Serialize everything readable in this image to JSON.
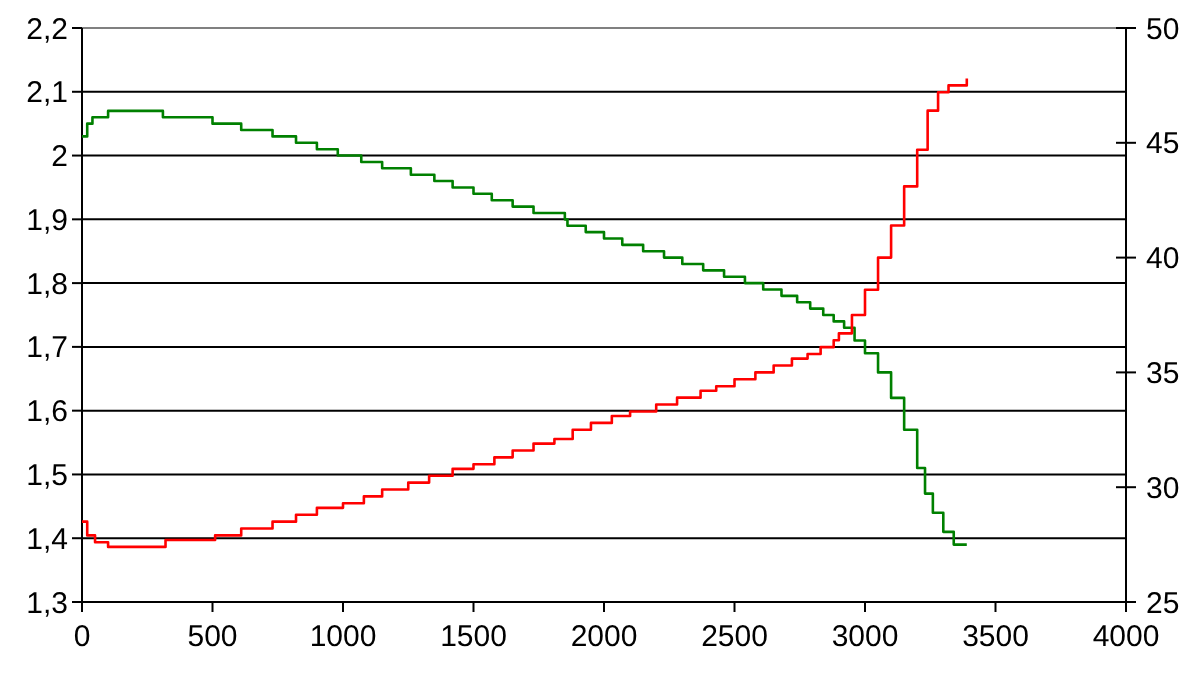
{
  "chart_data": {
    "type": "step",
    "xlim": [
      0,
      4000
    ],
    "xticks": [
      0,
      500,
      1000,
      1500,
      2000,
      2500,
      3000,
      3500,
      4000
    ],
    "ylim": [
      1.3,
      2.2
    ],
    "yticks": [
      {
        "value": 1.3,
        "label": "1,3"
      },
      {
        "value": 1.4,
        "label": "1,4"
      },
      {
        "value": 1.5,
        "label": "1,5"
      },
      {
        "value": 1.6,
        "label": "1,6"
      },
      {
        "value": 1.7,
        "label": "1,7"
      },
      {
        "value": 1.8,
        "label": "1,8"
      },
      {
        "value": 1.9,
        "label": "1,9"
      },
      {
        "value": 2,
        "label": "2"
      },
      {
        "value": 2.1,
        "label": "2,1"
      },
      {
        "value": 2.2,
        "label": "2,2"
      }
    ],
    "y2lim": [
      25,
      50
    ],
    "y2ticks": [
      25,
      30,
      35,
      40,
      45,
      50
    ],
    "grid": "y",
    "line_style": "solid",
    "marker": "none",
    "series": [
      {
        "color": "#008000",
        "x": [
          0,
          20,
          40,
          100,
          310,
          500,
          610,
          730,
          820,
          900,
          980,
          1070,
          1150,
          1260,
          1350,
          1420,
          1500,
          1570,
          1650,
          1730,
          1850,
          1860,
          1930,
          2000,
          2070,
          2150,
          2230,
          2300,
          2380,
          2460,
          2540,
          2610,
          2680,
          2740,
          2790,
          2840,
          2880,
          2920,
          2960,
          3000,
          3050,
          3100,
          3150,
          3200,
          3230,
          3260,
          3300,
          3340,
          3390
        ],
        "values": [
          2.03,
          2.05,
          2.06,
          2.07,
          2.06,
          2.05,
          2.04,
          2.03,
          2.02,
          2.01,
          2.0,
          1.99,
          1.98,
          1.97,
          1.96,
          1.95,
          1.94,
          1.93,
          1.92,
          1.91,
          1.9,
          1.89,
          1.88,
          1.87,
          1.86,
          1.85,
          1.84,
          1.83,
          1.82,
          1.81,
          1.8,
          1.79,
          1.78,
          1.77,
          1.76,
          1.75,
          1.74,
          1.73,
          1.71,
          1.69,
          1.66,
          1.62,
          1.57,
          1.51,
          1.47,
          1.44,
          1.41,
          1.39,
          1.39
        ]
      },
      {
        "color": "#ff0000",
        "axis": "y2",
        "x": [
          0,
          20,
          50,
          100,
          320,
          510,
          610,
          730,
          820,
          900,
          1000,
          1080,
          1150,
          1250,
          1330,
          1420,
          1500,
          1580,
          1650,
          1730,
          1810,
          1880,
          1950,
          2030,
          2100,
          2200,
          2280,
          2370,
          2430,
          2500,
          2580,
          2650,
          2720,
          2780,
          2830,
          2880,
          2900,
          2950,
          3000,
          3050,
          3100,
          3150,
          3200,
          3240,
          3280,
          3320,
          3390
        ],
        "values": [
          28.5,
          27.9,
          27.6,
          27.4,
          27.7,
          27.9,
          28.2,
          28.5,
          28.8,
          29.1,
          29.3,
          29.6,
          29.9,
          30.2,
          30.5,
          30.8,
          31.0,
          31.3,
          31.6,
          31.9,
          32.1,
          32.5,
          32.8,
          33.1,
          33.3,
          33.6,
          33.9,
          34.2,
          34.4,
          34.7,
          35.0,
          35.3,
          35.6,
          35.8,
          36.1,
          36.4,
          36.7,
          37.5,
          38.6,
          40.0,
          41.4,
          43.1,
          44.7,
          46.4,
          47.2,
          47.5,
          47.8
        ]
      }
    ]
  }
}
